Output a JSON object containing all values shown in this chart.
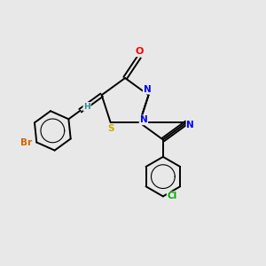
{
  "background_color": "#e8e8e8",
  "bond_color": "#000000",
  "atom_colors": {
    "O": "#ff0000",
    "N": "#0000ff",
    "S": "#ccaa00",
    "Br": "#cc6600",
    "Cl": "#00aa00",
    "C": "#000000",
    "H": "#2e8b8b"
  },
  "figsize": [
    3.0,
    3.0
  ],
  "dpi": 100
}
